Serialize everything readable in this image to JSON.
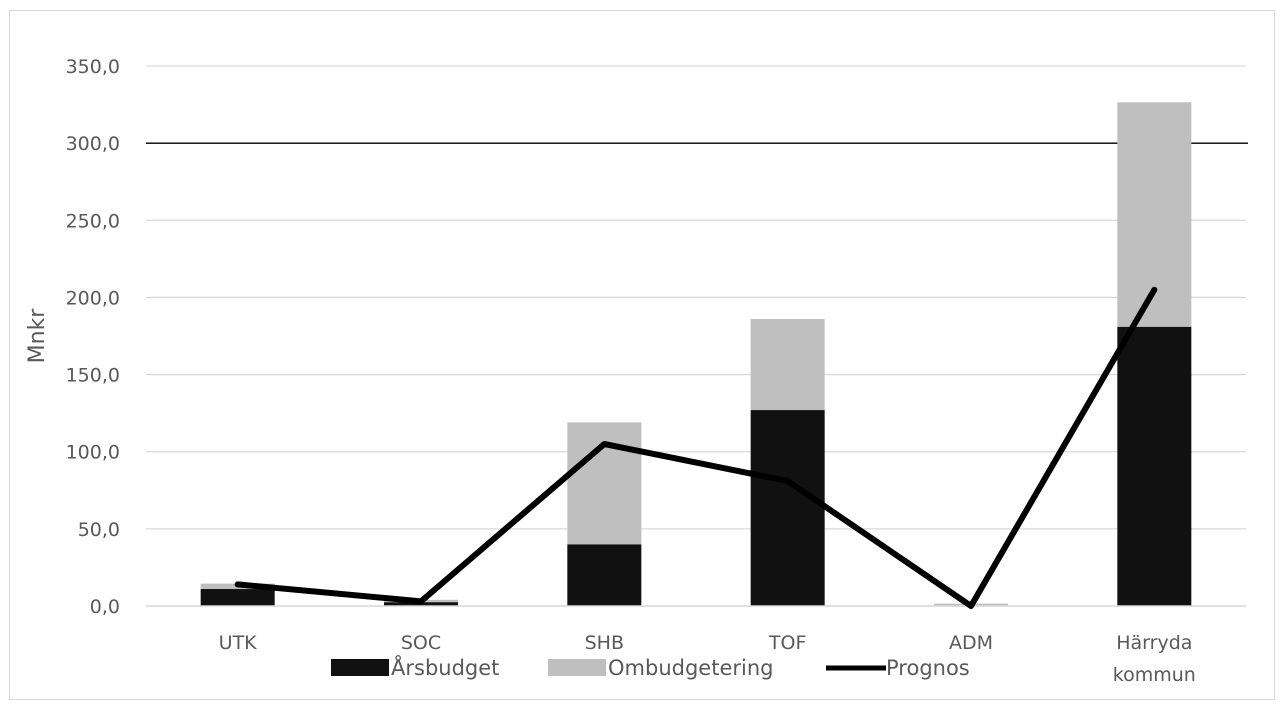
{
  "chart_data": {
    "type": "bar",
    "stacked": true,
    "categories": [
      "UTK",
      "SOC",
      "SHB",
      "TOF",
      "ADM",
      "Härryda kommun"
    ],
    "category_lines": [
      [
        "UTK"
      ],
      [
        "SOC"
      ],
      [
        "SHB"
      ],
      [
        "TOF"
      ],
      [
        "ADM"
      ],
      [
        "Härryda",
        "kommun"
      ]
    ],
    "series": [
      {
        "name": "Årsbudget",
        "kind": "bar",
        "color": "#111111",
        "values": [
          11.0,
          2.5,
          40.0,
          127.0,
          0.0,
          181.0
        ]
      },
      {
        "name": "Ombudgetering",
        "kind": "bar",
        "color": "#bfbfbf",
        "values": [
          3.5,
          1.5,
          79.0,
          59.0,
          1.5,
          145.5
        ]
      },
      {
        "name": "Prognos",
        "kind": "line",
        "color": "#000000",
        "values": [
          14.0,
          3.0,
          105.0,
          81.0,
          0.0,
          205.0
        ]
      }
    ],
    "ylabel": "Mnkr",
    "xlabel": "",
    "ylim": [
      0,
      350
    ],
    "yticks": [
      0,
      50,
      100,
      150,
      200,
      250,
      300,
      350
    ],
    "ytick_labels": [
      "0,0",
      "50,0",
      "100,0",
      "150,0",
      "200,0",
      "250,0",
      "300,0",
      "350,0"
    ],
    "reference_line": 300,
    "grid": true,
    "legend_position": "bottom"
  }
}
